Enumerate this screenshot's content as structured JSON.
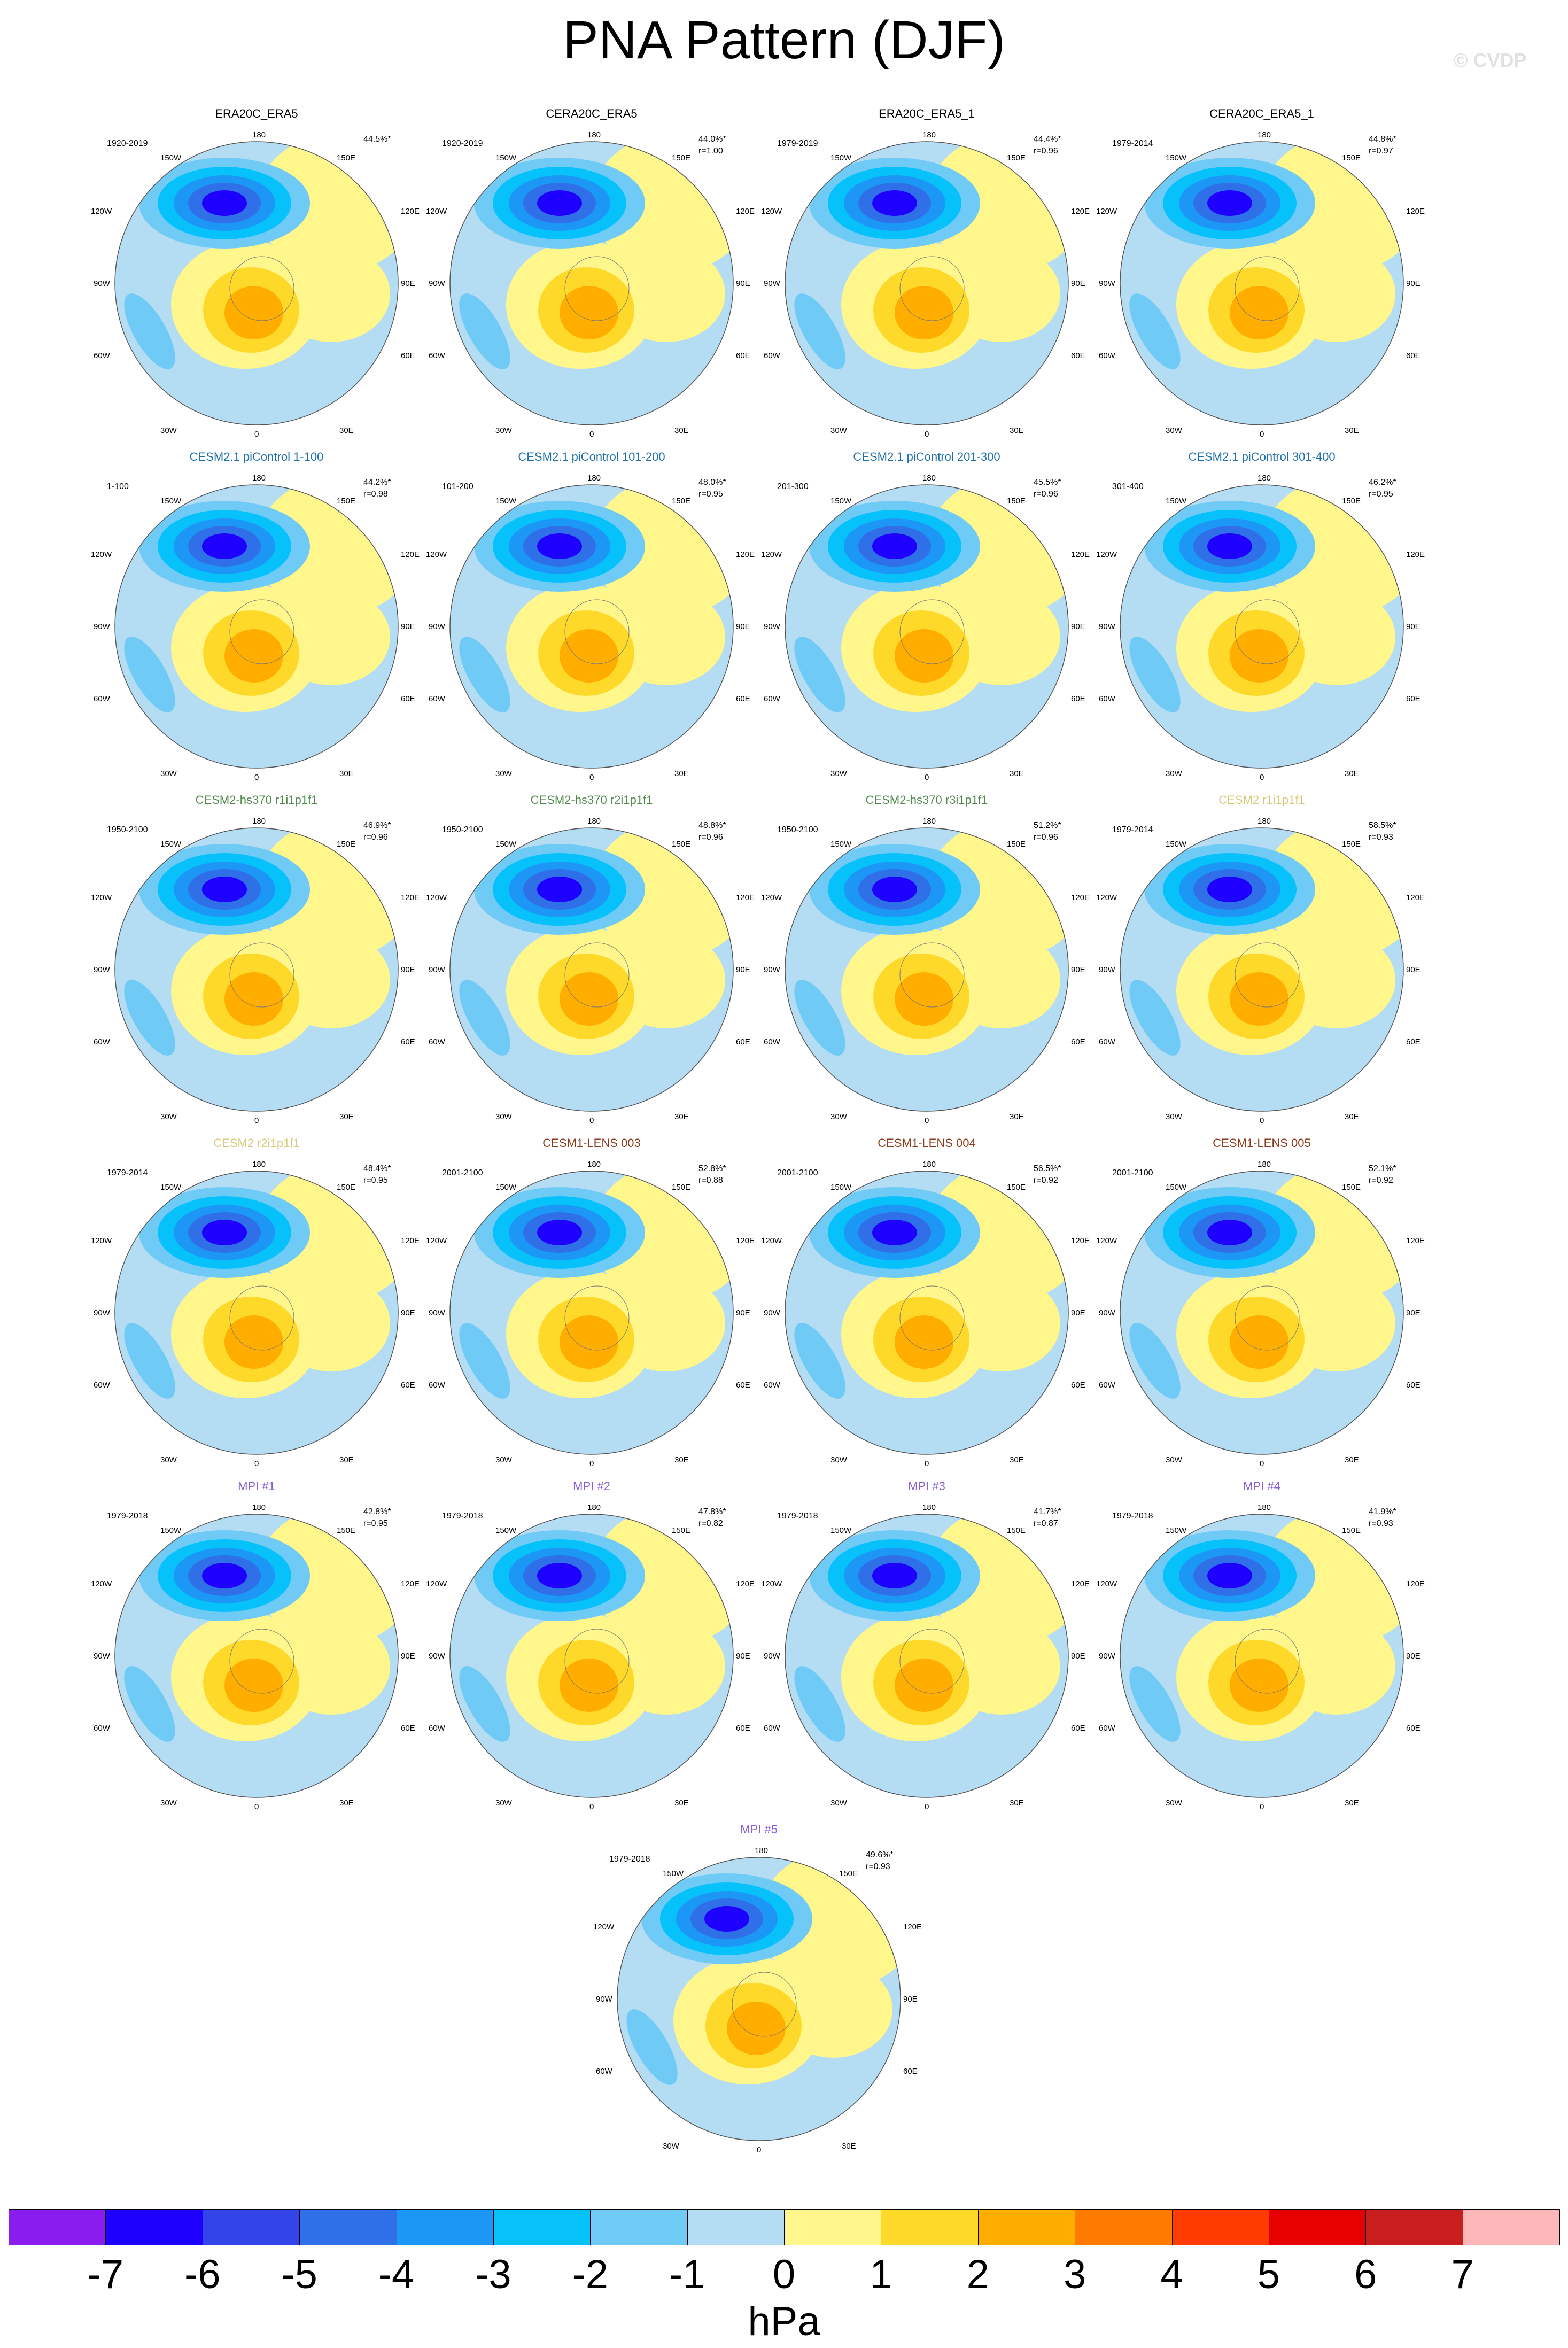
{
  "title": "PNA Pattern (DJF)",
  "credit": "© CVDP",
  "lon_labels": {
    "top": "180",
    "l150": "150W",
    "r150": "150E",
    "l120": "120W",
    "r120": "120E",
    "l90": "90W",
    "r90": "90E",
    "l60": "60W",
    "r60": "60E",
    "l30": "30W",
    "r30": "30E",
    "bottom": "0"
  },
  "panels": [
    {
      "title": "ERA20C_ERA5",
      "title_color": "#000000",
      "period": "1920-2019",
      "stat1": "44.5%*",
      "stat2": ""
    },
    {
      "title": "CERA20C_ERA5",
      "title_color": "#000000",
      "period": "1920-2019",
      "stat1": "44.0%*",
      "stat2": "r=1.00"
    },
    {
      "title": "ERA20C_ERA5_1",
      "title_color": "#000000",
      "period": "1979-2019",
      "stat1": "44.4%*",
      "stat2": "r=0.96"
    },
    {
      "title": "CERA20C_ERA5_1",
      "title_color": "#000000",
      "period": "1979-2014",
      "stat1": "44.8%*",
      "stat2": "r=0.97"
    },
    {
      "title": "CESM2.1 piControl 1-100",
      "title_color": "#1f6fa8",
      "period": "1-100",
      "stat1": "44.2%*",
      "stat2": "r=0.98"
    },
    {
      "title": "CESM2.1 piControl 101-200",
      "title_color": "#1f6fa8",
      "period": "101-200",
      "stat1": "48.0%*",
      "stat2": "r=0.95"
    },
    {
      "title": "CESM2.1 piControl 201-300",
      "title_color": "#1f6fa8",
      "period": "201-300",
      "stat1": "45.5%*",
      "stat2": "r=0.96"
    },
    {
      "title": "CESM2.1 piControl 301-400",
      "title_color": "#1f6fa8",
      "period": "301-400",
      "stat1": "46.2%*",
      "stat2": "r=0.95"
    },
    {
      "title": "CESM2-hs370 r1i1p1f1",
      "title_color": "#4e8a4a",
      "period": "1950-2100",
      "stat1": "46.9%*",
      "stat2": "r=0.96"
    },
    {
      "title": "CESM2-hs370 r2i1p1f1",
      "title_color": "#4e8a4a",
      "period": "1950-2100",
      "stat1": "48.8%*",
      "stat2": "r=0.96"
    },
    {
      "title": "CESM2-hs370 r3i1p1f1",
      "title_color": "#4e8a4a",
      "period": "1950-2100",
      "stat1": "51.2%*",
      "stat2": "r=0.96"
    },
    {
      "title": "CESM2 r1i1p1f1",
      "title_color": "#d8c978",
      "period": "1979-2014",
      "stat1": "58.5%*",
      "stat2": "r=0.93"
    },
    {
      "title": "CESM2 r2i1p1f1",
      "title_color": "#d8c978",
      "period": "1979-2014",
      "stat1": "48.4%*",
      "stat2": "r=0.95"
    },
    {
      "title": "CESM1-LENS 003",
      "title_color": "#8b3a1a",
      "period": "2001-2100",
      "stat1": "52.8%*",
      "stat2": "r=0.88"
    },
    {
      "title": "CESM1-LENS 004",
      "title_color": "#8b3a1a",
      "period": "2001-2100",
      "stat1": "56.5%*",
      "stat2": "r=0.92"
    },
    {
      "title": "CESM1-LENS 005",
      "title_color": "#8b3a1a",
      "period": "2001-2100",
      "stat1": "52.1%*",
      "stat2": "r=0.92"
    },
    {
      "title": "MPI #1",
      "title_color": "#8a5fd8",
      "period": "1979-2018",
      "stat1": "42.8%*",
      "stat2": "r=0.95"
    },
    {
      "title": "MPI #2",
      "title_color": "#8a5fd8",
      "period": "1979-2018",
      "stat1": "47.8%*",
      "stat2": "r=0.82"
    },
    {
      "title": "MPI #3",
      "title_color": "#8a5fd8",
      "period": "1979-2018",
      "stat1": "41.7%*",
      "stat2": "r=0.87"
    },
    {
      "title": "MPI #4",
      "title_color": "#8a5fd8",
      "period": "1979-2018",
      "stat1": "41.9%*",
      "stat2": "r=0.93"
    },
    {
      "title": "MPI #5",
      "title_color": "#8a5fd8",
      "period": "1979-2018",
      "stat1": "49.6%*",
      "stat2": "r=0.93"
    }
  ],
  "colorbar": {
    "colors": [
      "#8a1cf0",
      "#1e00ff",
      "#3344e8",
      "#2f6fe8",
      "#1d97f5",
      "#07c1fa",
      "#6fcbf5",
      "#b4dcf2",
      "#fff68c",
      "#fed92a",
      "#ffae00",
      "#ff7b00",
      "#ff3b00",
      "#e60000",
      "#c81e1e",
      "#fdb7b8"
    ],
    "ticks": [
      "-7",
      "-6",
      "-5",
      "-4",
      "-3",
      "-2",
      "-1",
      "0",
      "1",
      "2",
      "3",
      "4",
      "5",
      "6",
      "7"
    ],
    "units": "hPa"
  }
}
